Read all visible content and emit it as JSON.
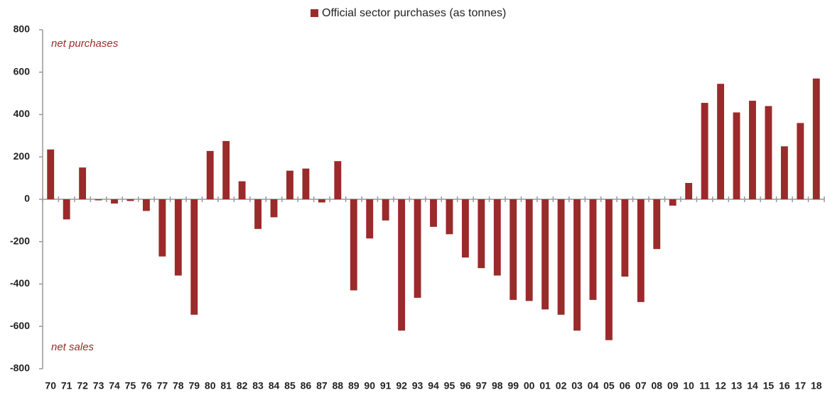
{
  "chart_data": {
    "type": "bar",
    "annotations": [
      "net purchases",
      "net sales"
    ],
    "categories": [
      "70",
      "71",
      "72",
      "73",
      "74",
      "75",
      "76",
      "77",
      "78",
      "79",
      "80",
      "81",
      "82",
      "83",
      "84",
      "85",
      "86",
      "87",
      "88",
      "89",
      "90",
      "91",
      "92",
      "93",
      "94",
      "95",
      "96",
      "97",
      "98",
      "99",
      "00",
      "01",
      "02",
      "03",
      "04",
      "05",
      "06",
      "07",
      "08",
      "09",
      "10",
      "11",
      "12",
      "13",
      "14",
      "15",
      "16",
      "17",
      "18"
    ],
    "series": [
      {
        "name": "Official sector purchases (as tonnes)",
        "color": "#9b2a2a",
        "values": [
          235,
          -95,
          150,
          -5,
          -20,
          -8,
          -55,
          -270,
          -360,
          -545,
          228,
          275,
          85,
          -140,
          -85,
          135,
          145,
          -15,
          180,
          -430,
          -185,
          -100,
          -620,
          -465,
          -130,
          -165,
          -275,
          -325,
          -360,
          -475,
          -480,
          -520,
          -545,
          -620,
          -475,
          -665,
          -365,
          -485,
          -235,
          -30,
          77,
          455,
          545,
          410,
          465,
          440,
          250,
          360,
          570
        ]
      }
    ],
    "ylim": [
      -800,
      800
    ],
    "yticks": [
      -800,
      -600,
      -400,
      -200,
      0,
      200,
      400,
      600,
      800
    ],
    "grid": false
  }
}
